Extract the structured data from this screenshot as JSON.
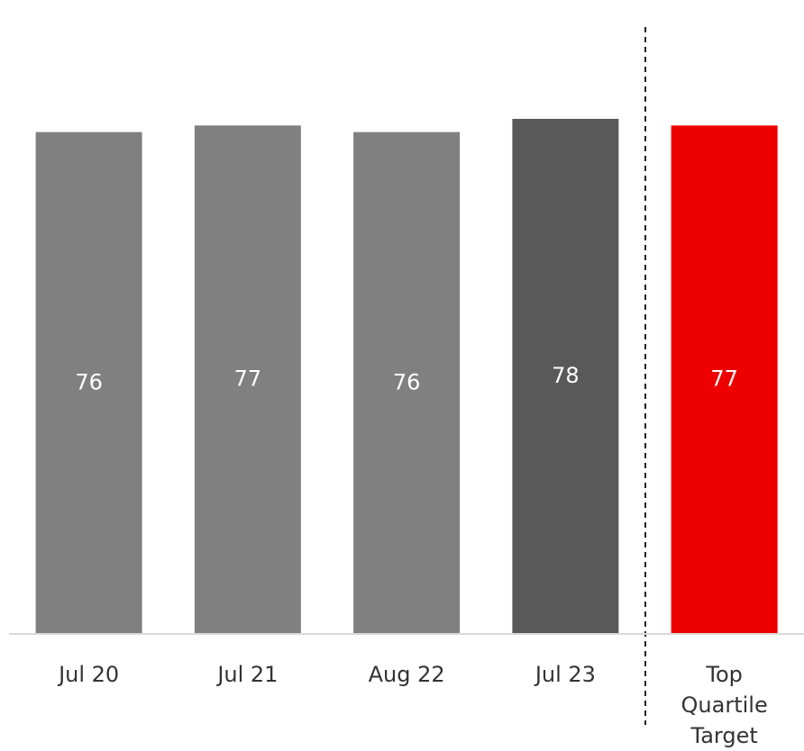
{
  "chart_data": {
    "type": "bar",
    "categories": [
      "Jul 20",
      "Jul 21",
      "Aug 22",
      "Jul 23",
      "Top Quartile Target"
    ],
    "values": [
      76,
      77,
      76,
      78,
      77
    ],
    "colors": [
      "#808080",
      "#808080",
      "#808080",
      "#595959",
      "#ee0000"
    ],
    "ylim": [
      0,
      96
    ]
  }
}
